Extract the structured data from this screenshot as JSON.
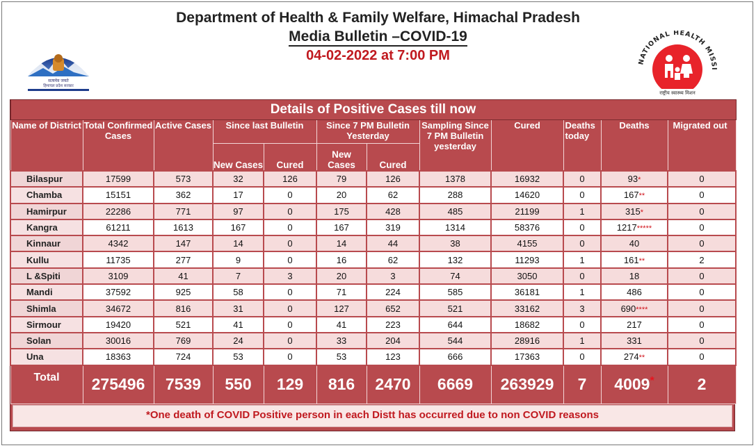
{
  "header": {
    "line1": "Department of Health & Family Welfare, Himachal Pradesh",
    "line2": "Media Bulletin –COVID-19",
    "line3": "04-02-2022 at 7:00 PM"
  },
  "logos": {
    "left_icon": "himachal-emblem-icon",
    "right_icon": "national-health-mission-icon",
    "right_text_top": "NATIONAL HEALTH MISSION",
    "right_text_bottom": "राष्ट्रीय स्वास्थ्य मिशन"
  },
  "colors": {
    "table_red": "#b84a4e",
    "alert_red": "#c0191f",
    "light_row": "#f6dcdc"
  },
  "table": {
    "banner": "Details of Positive Cases till now",
    "headers": {
      "district": "Name of District",
      "total_confirmed": "Total Confirmed Cases",
      "active": "Active Cases",
      "since_last": "Since last Bulletin",
      "since_7pm": "Since 7 PM Bulletin Yesterday",
      "sampling": "Sampling Since 7 PM Bulletin yesterday",
      "cured": "Cured",
      "deaths_today": "Deaths today",
      "deaths": "Deaths",
      "migrated": "Migrated out",
      "new_cases": "New Cases",
      "cured_sub": "Cured"
    },
    "rows": [
      {
        "district": "Bilaspur",
        "total": "17599",
        "active": "573",
        "sl_new": "32",
        "sl_cured": "126",
        "s7_new": "79",
        "s7_cured": "126",
        "sampling": "1378",
        "cured": "16932",
        "deaths_today": "0",
        "deaths": "93",
        "deaths_mark": "*",
        "migrated": "0"
      },
      {
        "district": "Chamba",
        "total": "15151",
        "active": "362",
        "sl_new": "17",
        "sl_cured": "0",
        "s7_new": "20",
        "s7_cured": "62",
        "sampling": "288",
        "cured": "14620",
        "deaths_today": "0",
        "deaths": "167",
        "deaths_mark": "**",
        "migrated": "0"
      },
      {
        "district": "Hamirpur",
        "total": "22286",
        "active": "771",
        "sl_new": "97",
        "sl_cured": "0",
        "s7_new": "175",
        "s7_cured": "428",
        "sampling": "485",
        "cured": "21199",
        "deaths_today": "1",
        "deaths": "315",
        "deaths_mark": "*",
        "migrated": "0"
      },
      {
        "district": "Kangra",
        "total": "61211",
        "active": "1613",
        "sl_new": "167",
        "sl_cured": "0",
        "s7_new": "167",
        "s7_cured": "319",
        "sampling": "1314",
        "cured": "58376",
        "deaths_today": "0",
        "deaths": "1217",
        "deaths_mark": "*****",
        "migrated": "0"
      },
      {
        "district": "Kinnaur",
        "total": "4342",
        "active": "147",
        "sl_new": "14",
        "sl_cured": "0",
        "s7_new": "14",
        "s7_cured": "44",
        "sampling": "38",
        "cured": "4155",
        "deaths_today": "0",
        "deaths": "40",
        "deaths_mark": "",
        "migrated": "0"
      },
      {
        "district": "Kullu",
        "total": "11735",
        "active": "277",
        "sl_new": "9",
        "sl_cured": "0",
        "s7_new": "16",
        "s7_cured": "62",
        "sampling": "132",
        "cured": "11293",
        "deaths_today": "1",
        "deaths": "161",
        "deaths_mark": "**",
        "migrated": "2"
      },
      {
        "district": "L &Spiti",
        "total": "3109",
        "active": "41",
        "sl_new": "7",
        "sl_cured": "3",
        "s7_new": "20",
        "s7_cured": "3",
        "sampling": "74",
        "cured": "3050",
        "deaths_today": "0",
        "deaths": "18",
        "deaths_mark": "",
        "migrated": "0"
      },
      {
        "district": "Mandi",
        "total": "37592",
        "active": "925",
        "sl_new": "58",
        "sl_cured": "0",
        "s7_new": "71",
        "s7_cured": "224",
        "sampling": "585",
        "cured": "36181",
        "deaths_today": "1",
        "deaths": "486",
        "deaths_mark": "",
        "migrated": "0"
      },
      {
        "district": "Shimla",
        "total": "34672",
        "active": "816",
        "sl_new": "31",
        "sl_cured": "0",
        "s7_new": "127",
        "s7_cured": "652",
        "sampling": "521",
        "cured": "33162",
        "deaths_today": "3",
        "deaths": "690",
        "deaths_mark": "****",
        "migrated": "0"
      },
      {
        "district": "Sirmour",
        "total": "19420",
        "active": "521",
        "sl_new": "41",
        "sl_cured": "0",
        "s7_new": "41",
        "s7_cured": "223",
        "sampling": "644",
        "cured": "18682",
        "deaths_today": "0",
        "deaths": "217",
        "deaths_mark": "",
        "migrated": "0"
      },
      {
        "district": "Solan",
        "total": "30016",
        "active": "769",
        "sl_new": "24",
        "sl_cured": "0",
        "s7_new": "33",
        "s7_cured": "204",
        "sampling": "544",
        "cured": "28916",
        "deaths_today": "1",
        "deaths": "331",
        "deaths_mark": "",
        "migrated": "0"
      },
      {
        "district": "Una",
        "total": "18363",
        "active": "724",
        "sl_new": "53",
        "sl_cured": "0",
        "s7_new": "53",
        "s7_cured": "123",
        "sampling": "666",
        "cured": "17363",
        "deaths_today": "0",
        "deaths": "274",
        "deaths_mark": "**",
        "migrated": "0"
      }
    ],
    "total": {
      "label": "Total",
      "total": "275496",
      "active": "7539",
      "sl_new": "550",
      "sl_cured": "129",
      "s7_new": "816",
      "s7_cured": "2470",
      "sampling": "6669",
      "cured": "263929",
      "deaths_today": "7",
      "deaths": "4009",
      "deaths_mark": "*",
      "migrated": "2"
    }
  },
  "footnote": "*One death of COVID Positive person in each Distt has occurred due to non COVID reasons"
}
